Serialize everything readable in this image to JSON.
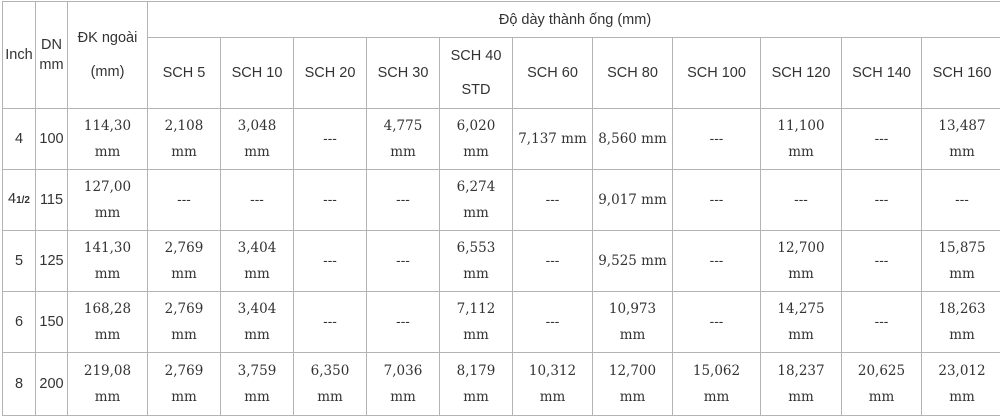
{
  "header": {
    "inch": "Inch",
    "dn_line1": "DN",
    "dn_line2": "mm",
    "dk_line1": "ĐK ngoài",
    "dk_line2": "(mm)",
    "group_title": "Độ dày thành ống (mm)",
    "schedules": [
      "SCH 5",
      "SCH 10",
      "SCH 20",
      "SCH 30",
      "SCH 40",
      "SCH 60",
      "SCH 80",
      "SCH 100",
      "SCH 120",
      "SCH 140",
      "SCH 160"
    ],
    "sch40_sub": "STD"
  },
  "rows": [
    {
      "inch": "4",
      "dn": "100",
      "od": [
        "114,30",
        "mm"
      ],
      "cells": [
        [
          "2,108",
          "mm"
        ],
        [
          "3,048",
          "mm"
        ],
        [
          "---"
        ],
        [
          "4,775",
          "mm"
        ],
        [
          "6,020",
          "mm"
        ],
        [
          "7,137 mm"
        ],
        [
          "8,560 mm"
        ],
        [
          "---"
        ],
        [
          "11,100",
          "mm"
        ],
        [
          "---"
        ],
        [
          "13,487",
          "mm"
        ]
      ]
    },
    {
      "inch": "4",
      "inch_frac": "1/2",
      "dn": "115",
      "od": [
        "127,00",
        "mm"
      ],
      "cells": [
        [
          "---"
        ],
        [
          "---"
        ],
        [
          "---"
        ],
        [
          "---"
        ],
        [
          "6,274",
          "mm"
        ],
        [
          "---"
        ],
        [
          "9,017 mm"
        ],
        [
          "---"
        ],
        [
          "---"
        ],
        [
          "---"
        ],
        [
          "---"
        ]
      ]
    },
    {
      "inch": "5",
      "dn": "125",
      "od": [
        "141,30",
        "mm"
      ],
      "cells": [
        [
          "2,769",
          "mm"
        ],
        [
          "3,404",
          "mm"
        ],
        [
          "---"
        ],
        [
          "---"
        ],
        [
          "6,553",
          "mm"
        ],
        [
          "---"
        ],
        [
          "9,525 mm"
        ],
        [
          "---"
        ],
        [
          "12,700",
          "mm"
        ],
        [
          "---"
        ],
        [
          "15,875",
          "mm"
        ]
      ]
    },
    {
      "inch": "6",
      "dn": "150",
      "od": [
        "168,28",
        "mm"
      ],
      "cells": [
        [
          "2,769",
          "mm"
        ],
        [
          "3,404",
          "mm"
        ],
        [
          "---"
        ],
        [
          "---"
        ],
        [
          "7,112",
          "mm"
        ],
        [
          "---"
        ],
        [
          "10,973",
          "mm"
        ],
        [
          "---"
        ],
        [
          "14,275",
          "mm"
        ],
        [
          "---"
        ],
        [
          "18,263",
          "mm"
        ]
      ]
    },
    {
      "inch": "8",
      "dn": "200",
      "od": [
        "219,08",
        "mm"
      ],
      "cells": [
        [
          "2,769",
          "mm"
        ],
        [
          "3,759",
          "mm"
        ],
        [
          "6,350",
          "mm"
        ],
        [
          "7,036",
          "mm"
        ],
        [
          "8,179",
          "mm"
        ],
        [
          "10,312",
          "mm"
        ],
        [
          "12,700",
          "mm"
        ],
        [
          "15,062",
          "mm"
        ],
        [
          "18,237",
          "mm"
        ],
        [
          "20,625",
          "mm"
        ],
        [
          "23,012",
          "mm"
        ]
      ]
    }
  ]
}
